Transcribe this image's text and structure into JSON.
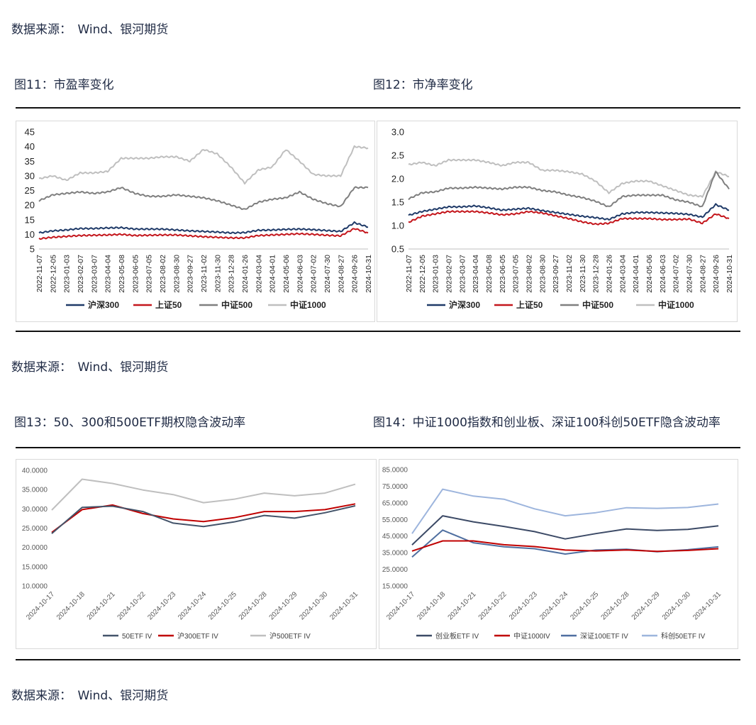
{
  "sources": [
    "数据来源：　Wind、银河期货",
    "数据来源：　Wind、银河期货",
    "数据来源：　Wind、银河期货"
  ],
  "figures": [
    {
      "title": "图11：市盈率变化"
    },
    {
      "title": "图12：市净率变化"
    },
    {
      "title": "图13：50、300和500ETF期权隐含波动率"
    },
    {
      "title": "图14：中证1000指数和创业板、深证100科创50ETF隐含波动率"
    }
  ],
  "chart_data": [
    {
      "type": "line",
      "title": "",
      "ylim": [
        5,
        45
      ],
      "yticks": [
        "5",
        "10",
        "15",
        "20",
        "25",
        "30",
        "35",
        "40",
        "45"
      ],
      "x": [
        "2022-11-07",
        "2022-12-05",
        "2023-01-03",
        "2023-02-07",
        "2023-03-07",
        "2023-04-04",
        "2023-05-08",
        "2023-06-05",
        "2023-07-05",
        "2023-08-02",
        "2023-08-30",
        "2023-09-27",
        "2023-11-02",
        "2023-11-30",
        "2023-12-28",
        "2024-01-26",
        "2024-03-04",
        "2024-04-01",
        "2024-05-06",
        "2024-06-03",
        "2024-07-02",
        "2024-07-30",
        "2024-08-27",
        "2024-09-26",
        "2024-10-31"
      ],
      "legend": "bottom",
      "series": [
        {
          "name": "沪深300",
          "color": "#1f3a68",
          "values": [
            10.5,
            11.2,
            11.5,
            12.0,
            12.0,
            12.2,
            12.3,
            11.8,
            11.8,
            11.8,
            11.5,
            11.2,
            11.0,
            10.8,
            10.5,
            10.6,
            11.4,
            11.5,
            11.7,
            11.8,
            11.6,
            11.3,
            11.0,
            14.0,
            12.5
          ]
        },
        {
          "name": "上证50",
          "color": "#c4161c",
          "values": [
            8.5,
            9.0,
            9.3,
            9.6,
            9.7,
            9.8,
            10.0,
            9.6,
            9.7,
            9.8,
            9.8,
            9.5,
            9.2,
            9.0,
            8.8,
            8.8,
            9.6,
            9.8,
            10.0,
            10.2,
            10.0,
            9.7,
            9.5,
            12.0,
            10.5
          ]
        },
        {
          "name": "中证500",
          "color": "#7f7f7f",
          "values": [
            21.5,
            23.5,
            24.0,
            24.5,
            24.0,
            24.5,
            26.0,
            24.0,
            23.0,
            23.0,
            23.5,
            23.0,
            22.5,
            21.5,
            20.0,
            18.5,
            21.0,
            22.0,
            22.5,
            24.5,
            22.0,
            20.5,
            19.5,
            26.0,
            26.0
          ]
        },
        {
          "name": "中证1000",
          "color": "#bfbfbf",
          "values": [
            29.0,
            30.0,
            28.5,
            31.0,
            31.0,
            31.5,
            36.0,
            36.0,
            36.0,
            36.5,
            36.5,
            35.0,
            39.0,
            37.5,
            33.0,
            27.5,
            32.0,
            33.0,
            39.0,
            35.0,
            30.5,
            30.0,
            30.0,
            40.0,
            39.5
          ]
        }
      ]
    },
    {
      "type": "line",
      "title": "",
      "ylim": [
        0.5,
        3.0
      ],
      "yticks": [
        "0.5",
        "1.0",
        "1.5",
        "2.0",
        "2.5",
        "3.0"
      ],
      "x": [
        "2022-11-07",
        "2022-12-05",
        "2023-01-03",
        "2023-02-07",
        "2023-03-07",
        "2023-04-04",
        "2023-05-08",
        "2023-06-05",
        "2023-07-05",
        "2023-08-02",
        "2023-08-30",
        "2023-09-27",
        "2023-11-02",
        "2023-11-30",
        "2023-12-28",
        "2024-01-26",
        "2024-03-04",
        "2024-04-01",
        "2024-05-06",
        "2024-06-03",
        "2024-07-02",
        "2024-07-30",
        "2024-08-27",
        "2024-09-26",
        "2024-10-31"
      ],
      "legend": "bottom",
      "series": [
        {
          "name": "沪深300",
          "color": "#1f3a68",
          "values": [
            1.22,
            1.3,
            1.35,
            1.4,
            1.4,
            1.42,
            1.38,
            1.33,
            1.35,
            1.37,
            1.32,
            1.28,
            1.24,
            1.2,
            1.17,
            1.13,
            1.25,
            1.28,
            1.28,
            1.27,
            1.26,
            1.24,
            1.18,
            1.45,
            1.33
          ]
        },
        {
          "name": "上证50",
          "color": "#c4161c",
          "values": [
            1.07,
            1.2,
            1.25,
            1.3,
            1.3,
            1.3,
            1.27,
            1.23,
            1.25,
            1.3,
            1.27,
            1.21,
            1.15,
            1.08,
            1.03,
            1.05,
            1.15,
            1.15,
            1.15,
            1.13,
            1.13,
            1.14,
            1.05,
            1.25,
            1.15
          ]
        },
        {
          "name": "中证500",
          "color": "#7f7f7f",
          "values": [
            1.57,
            1.7,
            1.72,
            1.8,
            1.8,
            1.82,
            1.8,
            1.78,
            1.82,
            1.82,
            1.75,
            1.72,
            1.65,
            1.6,
            1.52,
            1.4,
            1.62,
            1.65,
            1.65,
            1.65,
            1.55,
            1.5,
            1.4,
            2.15,
            1.78
          ]
        },
        {
          "name": "中证1000",
          "color": "#bfbfbf",
          "values": [
            2.3,
            2.35,
            2.28,
            2.4,
            2.4,
            2.4,
            2.35,
            2.28,
            2.35,
            2.35,
            2.18,
            2.18,
            2.15,
            2.1,
            1.95,
            1.7,
            1.9,
            1.95,
            1.95,
            1.85,
            1.75,
            1.65,
            1.62,
            2.15,
            2.05
          ]
        }
      ]
    },
    {
      "type": "line",
      "title": "",
      "ylim": [
        10,
        40
      ],
      "yticks": [
        "10.0000",
        "15.0000",
        "20.0000",
        "25.0000",
        "30.0000",
        "35.0000",
        "40.0000"
      ],
      "x": [
        "2024-10-17",
        "2024-10-18",
        "2024-10-21",
        "2024-10-22",
        "2024-10-23",
        "2024-10-24",
        "2024-10-25",
        "2024-10-28",
        "2024-10-29",
        "2024-10-30",
        "2024-10-31"
      ],
      "legend": "bottom",
      "series": [
        {
          "name": "50ETF IV",
          "color": "#44546a",
          "values": [
            23.6,
            30.4,
            30.7,
            29.3,
            26.3,
            25.4,
            26.6,
            28.3,
            27.6,
            29.0,
            30.8
          ]
        },
        {
          "name": "沪300ETF IV",
          "color": "#c00000",
          "values": [
            23.9,
            29.8,
            31.0,
            28.8,
            27.4,
            26.7,
            27.7,
            29.3,
            29.3,
            29.8,
            31.3
          ]
        },
        {
          "name": "沪500ETF IV",
          "color": "#bfbfbf",
          "values": [
            29.7,
            37.7,
            36.6,
            34.9,
            33.7,
            31.6,
            32.5,
            34.1,
            33.4,
            34.1,
            36.4
          ]
        }
      ]
    },
    {
      "type": "line",
      "title": "",
      "ylim": [
        15,
        85
      ],
      "yticks": [
        "15.0000",
        "25.0000",
        "35.0000",
        "45.0000",
        "55.0000",
        "65.0000",
        "75.0000",
        "85.0000"
      ],
      "x": [
        "2024-10-17",
        "2024-10-18",
        "2024-10-21",
        "2024-10-22",
        "2024-10-23",
        "2024-10-24",
        "2024-10-25",
        "2024-10-28",
        "2024-10-29",
        "2024-10-30",
        "2024-10-31"
      ],
      "legend": "bottom",
      "series": [
        {
          "name": "创业板ETF IV",
          "color": "#3c4a66",
          "values": [
            39.7,
            57.2,
            53.6,
            50.8,
            47.7,
            43.3,
            46.5,
            49.3,
            48.4,
            49.0,
            51.2
          ]
        },
        {
          "name": "中证1000IV",
          "color": "#c00000",
          "values": [
            36.0,
            42.1,
            42.1,
            39.8,
            38.7,
            36.6,
            36.1,
            36.7,
            35.8,
            36.4,
            37.4
          ]
        },
        {
          "name": "深证100ETF IV",
          "color": "#4f6fa0",
          "values": [
            32.4,
            48.6,
            41.0,
            38.6,
            37.4,
            34.2,
            36.6,
            37.1,
            35.6,
            36.8,
            38.5
          ]
        },
        {
          "name": "科创50ETF IV",
          "color": "#9db5dd",
          "values": [
            46.5,
            73.2,
            69.1,
            67.2,
            61.4,
            57.2,
            59.1,
            62.1,
            61.7,
            62.2,
            64.3
          ]
        }
      ]
    }
  ]
}
